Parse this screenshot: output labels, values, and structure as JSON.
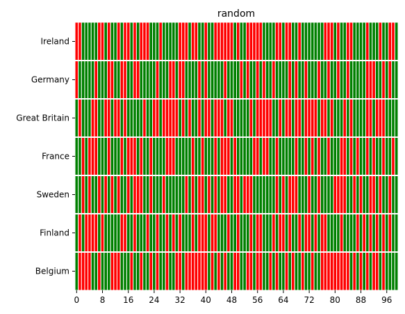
{
  "chart_data": {
    "type": "heatmap",
    "title": "random",
    "xlabel": "",
    "ylabel": "",
    "x_range": [
      0,
      99
    ],
    "x_ticks": [
      "0",
      "8",
      "16",
      "24",
      "32",
      "40",
      "48",
      "56",
      "64",
      "72",
      "80",
      "88",
      "96"
    ],
    "rows": [
      "Ireland",
      "Germany",
      "Great Britain",
      "France",
      "Sweden",
      "Finland",
      "Belgium"
    ],
    "legend": "none",
    "grid": false,
    "colors": {
      "1": "#008000",
      "0": "#ff0000",
      "separator": "#ffffff"
    },
    "values": [
      "0011111001011010010100011101111100010011011000000101100000111100100110111111100010110011110111011001",
      "0111110111001100110011111011100100111101011111011110101101011011110101101110110110110111110001101011",
      "1011100110010010111110110010000010101101001000100111110100000110100100100001001011101011110010001111",
      "1101000111011101000101101111000111110110111010001011111001001101111101101010110111001010110101101101",
      "1101011010101011010001101110111111010100101010011001000111111101010001110110111100001101011001011011",
      "1010000101111100110111011011010101110100010011101101110100111010010110100101001111011110101010101011",
      "1000011011100011101101101011011001000000010101011001100100110101101011011011000000000101010100101111"
    ]
  }
}
